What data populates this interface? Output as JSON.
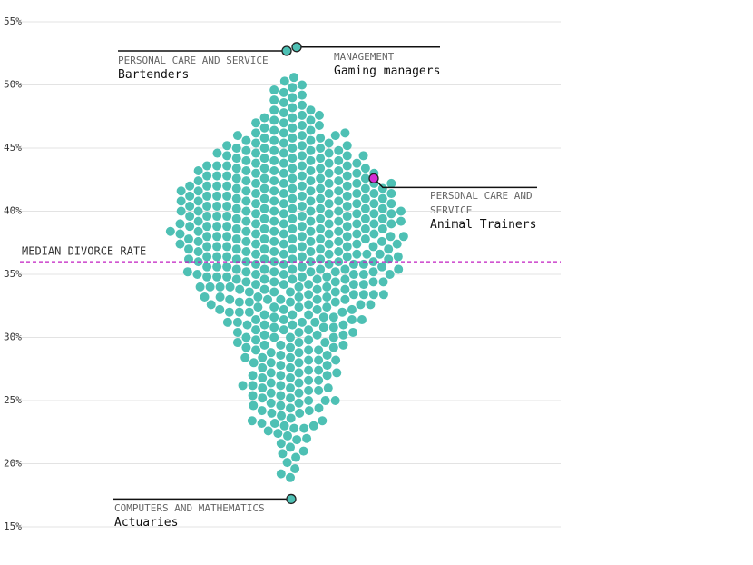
{
  "chart_data": {
    "type": "beeswarm",
    "color": "#4ec0b4",
    "ylim": [
      15,
      55
    ],
    "yticks": [
      {
        "value": 15,
        "label": "15%"
      },
      {
        "value": 20,
        "label": "20%"
      },
      {
        "value": 25,
        "label": "25%"
      },
      {
        "value": 30,
        "label": "30%"
      },
      {
        "value": 35,
        "label": "35%"
      },
      {
        "value": 40,
        "label": "40%"
      },
      {
        "value": 45,
        "label": "45%"
      },
      {
        "value": 50,
        "label": "50%"
      },
      {
        "value": 55,
        "label": "55%"
      }
    ],
    "grid": true,
    "median": {
      "value": 36,
      "label": "MEDIAN DIVORCE RATE",
      "color": "#c21fc2"
    },
    "highlights": [
      {
        "category": "PERSONAL CARE AND SERVICE",
        "name": "Bartenders",
        "value": 52.7,
        "color": "#4ec0b4"
      },
      {
        "category": "MANAGEMENT",
        "name": "Gaming managers",
        "value": 53,
        "color": "#4ec0b4"
      },
      {
        "category": "PERSONAL CARE AND SERVICE",
        "name": "Animal Trainers",
        "value": 42.6,
        "color": "#d42fd4"
      },
      {
        "category": "COMPUTERS AND MATHEMATICS",
        "name": "Actuaries",
        "value": 17.2,
        "color": "#4ec0b4"
      }
    ],
    "values": [
      18.9,
      19.2,
      19.6,
      20.1,
      20.5,
      20.8,
      21,
      21.3,
      21.6,
      21.9,
      22,
      22.2,
      22.4,
      22.6,
      22.8,
      22.8,
      23,
      23,
      23.2,
      23.2,
      23.4,
      23.4,
      23.6,
      23.8,
      24,
      24,
      24.2,
      24.2,
      24.4,
      24.4,
      24.6,
      24.6,
      24.8,
      24.8,
      25,
      25,
      25,
      25.2,
      25.2,
      25.4,
      25.4,
      25.6,
      25.6,
      25.8,
      25.8,
      26,
      26,
      26,
      26.2,
      26.2,
      26.2,
      26.4,
      26.4,
      26.6,
      26.6,
      26.8,
      26.8,
      27,
      27,
      27,
      27.2,
      27.2,
      27.2,
      27.4,
      27.4,
      27.6,
      27.6,
      27.8,
      27.8,
      28,
      28,
      28,
      28.2,
      28.2,
      28.2,
      28.4,
      28.4,
      28.4,
      28.6,
      28.6,
      28.8,
      28.8,
      29,
      29,
      29,
      29.2,
      29.2,
      29.2,
      29.4,
      29.4,
      29.4,
      29.6,
      29.6,
      29.6,
      29.8,
      29.8,
      30,
      30,
      30,
      30,
      30.2,
      30.2,
      30.2,
      30.4,
      30.4,
      30.4,
      30.6,
      30.6,
      30.6,
      30.8,
      30.8,
      30.8,
      31,
      31,
      31,
      31,
      31.2,
      31.2,
      31.2,
      31.2,
      31.4,
      31.4,
      31.4,
      31.4,
      31.6,
      31.6,
      31.6,
      31.8,
      31.8,
      31.8,
      32,
      32,
      32,
      32,
      32.2,
      32.2,
      32.2,
      32.2,
      32.4,
      32.4,
      32.4,
      32.4,
      32.6,
      32.6,
      32.6,
      32.6,
      32.8,
      32.8,
      32.8,
      32.8,
      33,
      33,
      33,
      33,
      33,
      33.2,
      33.2,
      33.2,
      33.2,
      33.2,
      33.4,
      33.4,
      33.4,
      33.4,
      33.4,
      33.6,
      33.6,
      33.6,
      33.6,
      33.8,
      33.8,
      33.8,
      33.8,
      34,
      34,
      34,
      34,
      34,
      34,
      34.2,
      34.2,
      34.2,
      34.2,
      34.2,
      34.4,
      34.4,
      34.4,
      34.4,
      34.4,
      34.6,
      34.6,
      34.6,
      34.6,
      34.6,
      34.8,
      34.8,
      34.8,
      34.8,
      34.8,
      35,
      35,
      35,
      35,
      35,
      35,
      35.2,
      35.2,
      35.2,
      35.2,
      35.2,
      35.2,
      35.4,
      35.4,
      35.4,
      35.4,
      35.4,
      35.4,
      35.6,
      35.6,
      35.6,
      35.6,
      35.6,
      35.8,
      35.8,
      35.8,
      35.8,
      35.8,
      36,
      36,
      36,
      36,
      36,
      36,
      36.2,
      36.2,
      36.2,
      36.2,
      36.2,
      36.2,
      36.4,
      36.4,
      36.4,
      36.4,
      36.4,
      36.4,
      36.6,
      36.6,
      36.6,
      36.6,
      36.6,
      36.6,
      36.8,
      36.8,
      36.8,
      36.8,
      36.8,
      37,
      37,
      37,
      37,
      37,
      37,
      37.2,
      37.2,
      37.2,
      37.2,
      37.2,
      37.2,
      37.4,
      37.4,
      37.4,
      37.4,
      37.4,
      37.4,
      37.6,
      37.6,
      37.6,
      37.6,
      37.6,
      37.6,
      37.8,
      37.8,
      37.8,
      37.8,
      37.8,
      37.8,
      38,
      38,
      38,
      38,
      38,
      38,
      38,
      38.2,
      38.2,
      38.2,
      38.2,
      38.2,
      38.2,
      38.4,
      38.4,
      38.4,
      38.4,
      38.4,
      38.4,
      38.6,
      38.6,
      38.6,
      38.6,
      38.6,
      38.6,
      38.8,
      38.8,
      38.8,
      38.8,
      38.8,
      38.8,
      39,
      39,
      39,
      39,
      39,
      39,
      39,
      39.2,
      39.2,
      39.2,
      39.2,
      39.2,
      39.2,
      39.4,
      39.4,
      39.4,
      39.4,
      39.4,
      39.4,
      39.6,
      39.6,
      39.6,
      39.6,
      39.6,
      39.6,
      39.8,
      39.8,
      39.8,
      39.8,
      39.8,
      39.8,
      40,
      40,
      40,
      40,
      40,
      40,
      40,
      40.2,
      40.2,
      40.2,
      40.2,
      40.2,
      40.2,
      40.4,
      40.4,
      40.4,
      40.4,
      40.4,
      40.4,
      40.6,
      40.6,
      40.6,
      40.6,
      40.6,
      40.6,
      40.8,
      40.8,
      40.8,
      40.8,
      40.8,
      40.8,
      41,
      41,
      41,
      41,
      41,
      41,
      41.2,
      41.2,
      41.2,
      41.2,
      41.2,
      41.2,
      41.4,
      41.4,
      41.4,
      41.4,
      41.4,
      41.4,
      41.6,
      41.6,
      41.6,
      41.6,
      41.6,
      41.6,
      41.8,
      41.8,
      41.8,
      41.8,
      41.8,
      41.8,
      42,
      42,
      42,
      42,
      42,
      42,
      42.2,
      42.2,
      42.2,
      42.2,
      42.2,
      42.2,
      42.4,
      42.4,
      42.4,
      42.4,
      42.4,
      42.6,
      42.6,
      42.6,
      42.6,
      42.6,
      42.8,
      42.8,
      42.8,
      42.8,
      42.8,
      43,
      43,
      43,
      43,
      43,
      43.2,
      43.2,
      43.2,
      43.2,
      43.2,
      43.4,
      43.4,
      43.4,
      43.4,
      43.4,
      43.6,
      43.6,
      43.6,
      43.6,
      43.6,
      43.8,
      43.8,
      43.8,
      43.8,
      44,
      44,
      44,
      44,
      44.2,
      44.2,
      44.2,
      44.2,
      44.4,
      44.4,
      44.4,
      44.4,
      44.6,
      44.6,
      44.6,
      44.6,
      44.8,
      44.8,
      44.8,
      44.8,
      45,
      45,
      45,
      45,
      45.2,
      45.2,
      45.2,
      45.4,
      45.4,
      45.4,
      45.6,
      45.6,
      45.6,
      45.8,
      45.8,
      45.8,
      46,
      46,
      46,
      46.2,
      46.2,
      46.2,
      46.4,
      46.4,
      46.6,
      46.6,
      46.8,
      46.8,
      47,
      47,
      47.2,
      47.2,
      47.4,
      47.4,
      47.6,
      47.6,
      47.8,
      48,
      48,
      48.2,
      48.4,
      48.6,
      48.8,
      49,
      49.2,
      49.4,
      49.6,
      49.8,
      50,
      50.3,
      50.6
    ]
  }
}
